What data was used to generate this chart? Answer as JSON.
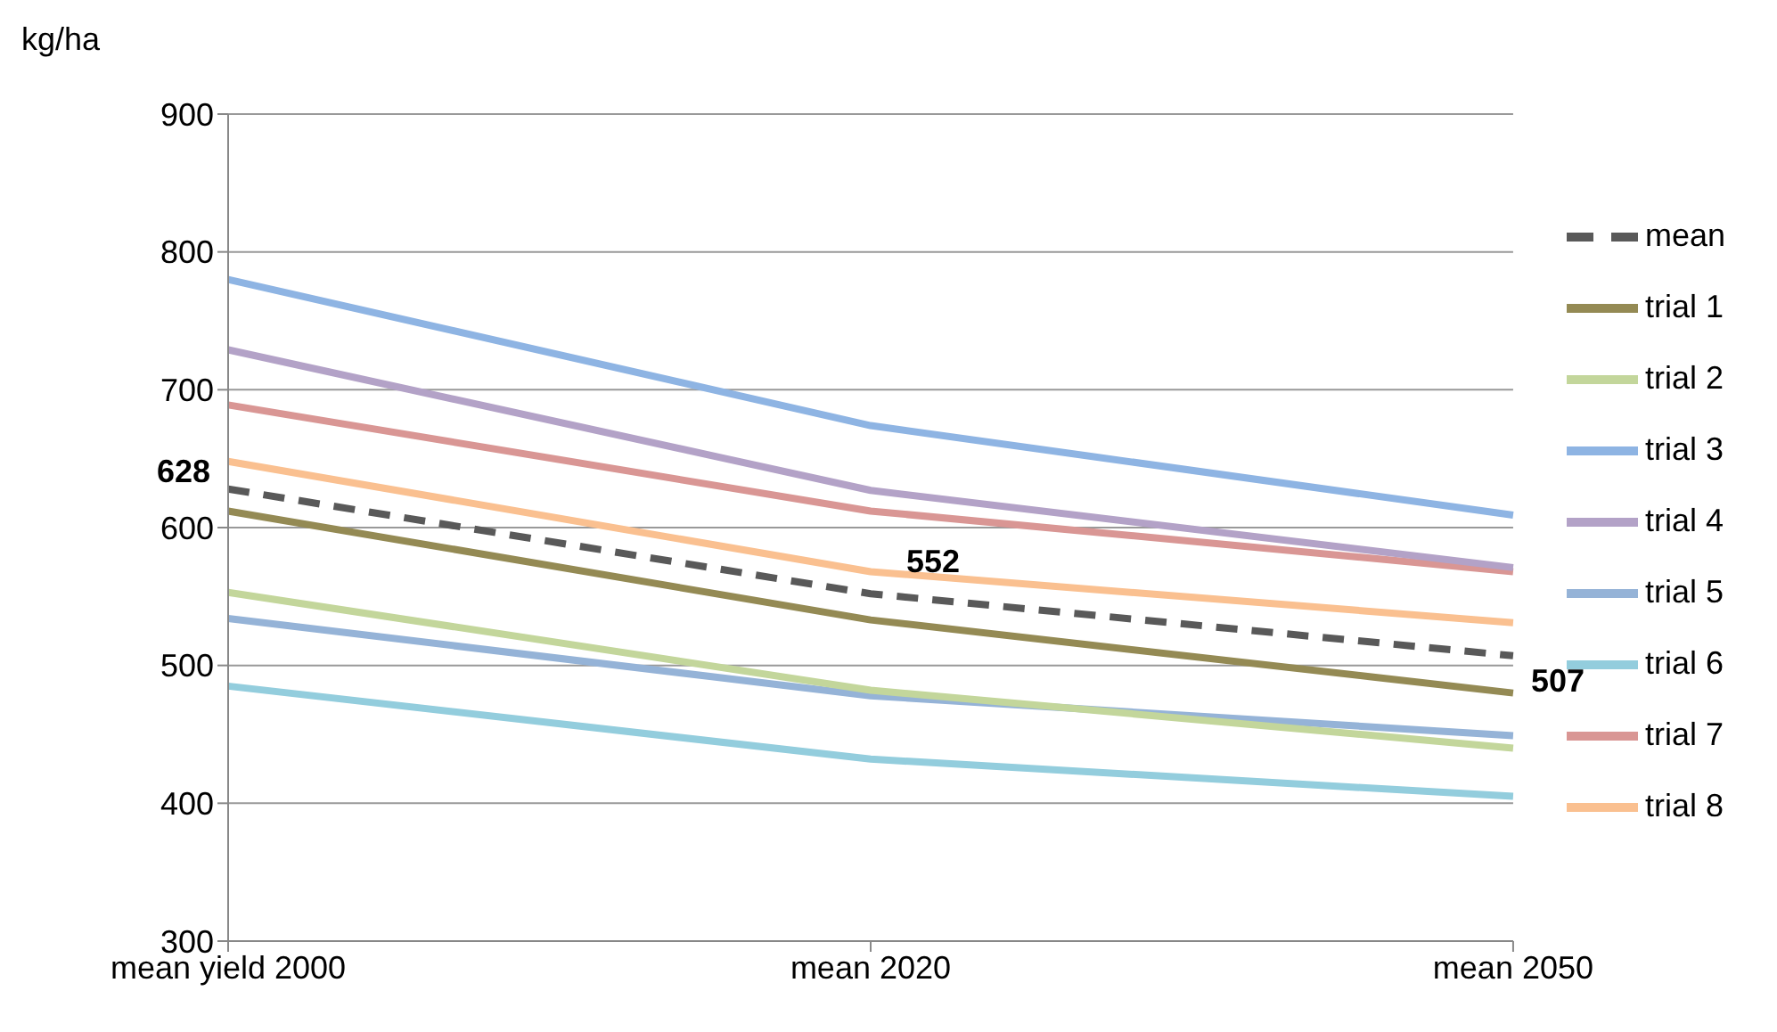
{
  "chart_data": {
    "type": "line",
    "ylabel": "kg/ha",
    "categories": [
      "mean yield  2000",
      "mean 2020",
      "mean 2050"
    ],
    "series": [
      {
        "name": "trial 1",
        "color": "#948a54",
        "values": [
          612,
          533,
          480
        ]
      },
      {
        "name": "trial 3",
        "color": "#8eb4e3",
        "values": [
          780,
          674,
          609
        ]
      },
      {
        "name": "trial 5",
        "color": "#95b3d7",
        "values": [
          534,
          478,
          449
        ]
      },
      {
        "name": "trial 7",
        "color": "#d99694",
        "values": [
          689,
          612,
          568
        ]
      },
      {
        "name": "trial 2",
        "color": "#c3d69b",
        "values": [
          553,
          482,
          440
        ]
      },
      {
        "name": "trial 4",
        "color": "#b3a2c7",
        "values": [
          729,
          627,
          571
        ]
      },
      {
        "name": "trial 6",
        "color": "#93cddd",
        "values": [
          485,
          432,
          405
        ]
      },
      {
        "name": "trial 8",
        "color": "#fac090",
        "values": [
          648,
          568,
          531
        ]
      },
      {
        "name": "mean",
        "color": "#595959",
        "line_style": "dashed",
        "values": [
          628,
          552,
          507
        ],
        "value_labels": [
          "628",
          "552",
          "507"
        ]
      }
    ],
    "ylim": [
      300,
      900
    ],
    "yticks": [
      300,
      400,
      500,
      600,
      700,
      800,
      900
    ],
    "grid": "y",
    "legend": "right",
    "marker": "none"
  }
}
